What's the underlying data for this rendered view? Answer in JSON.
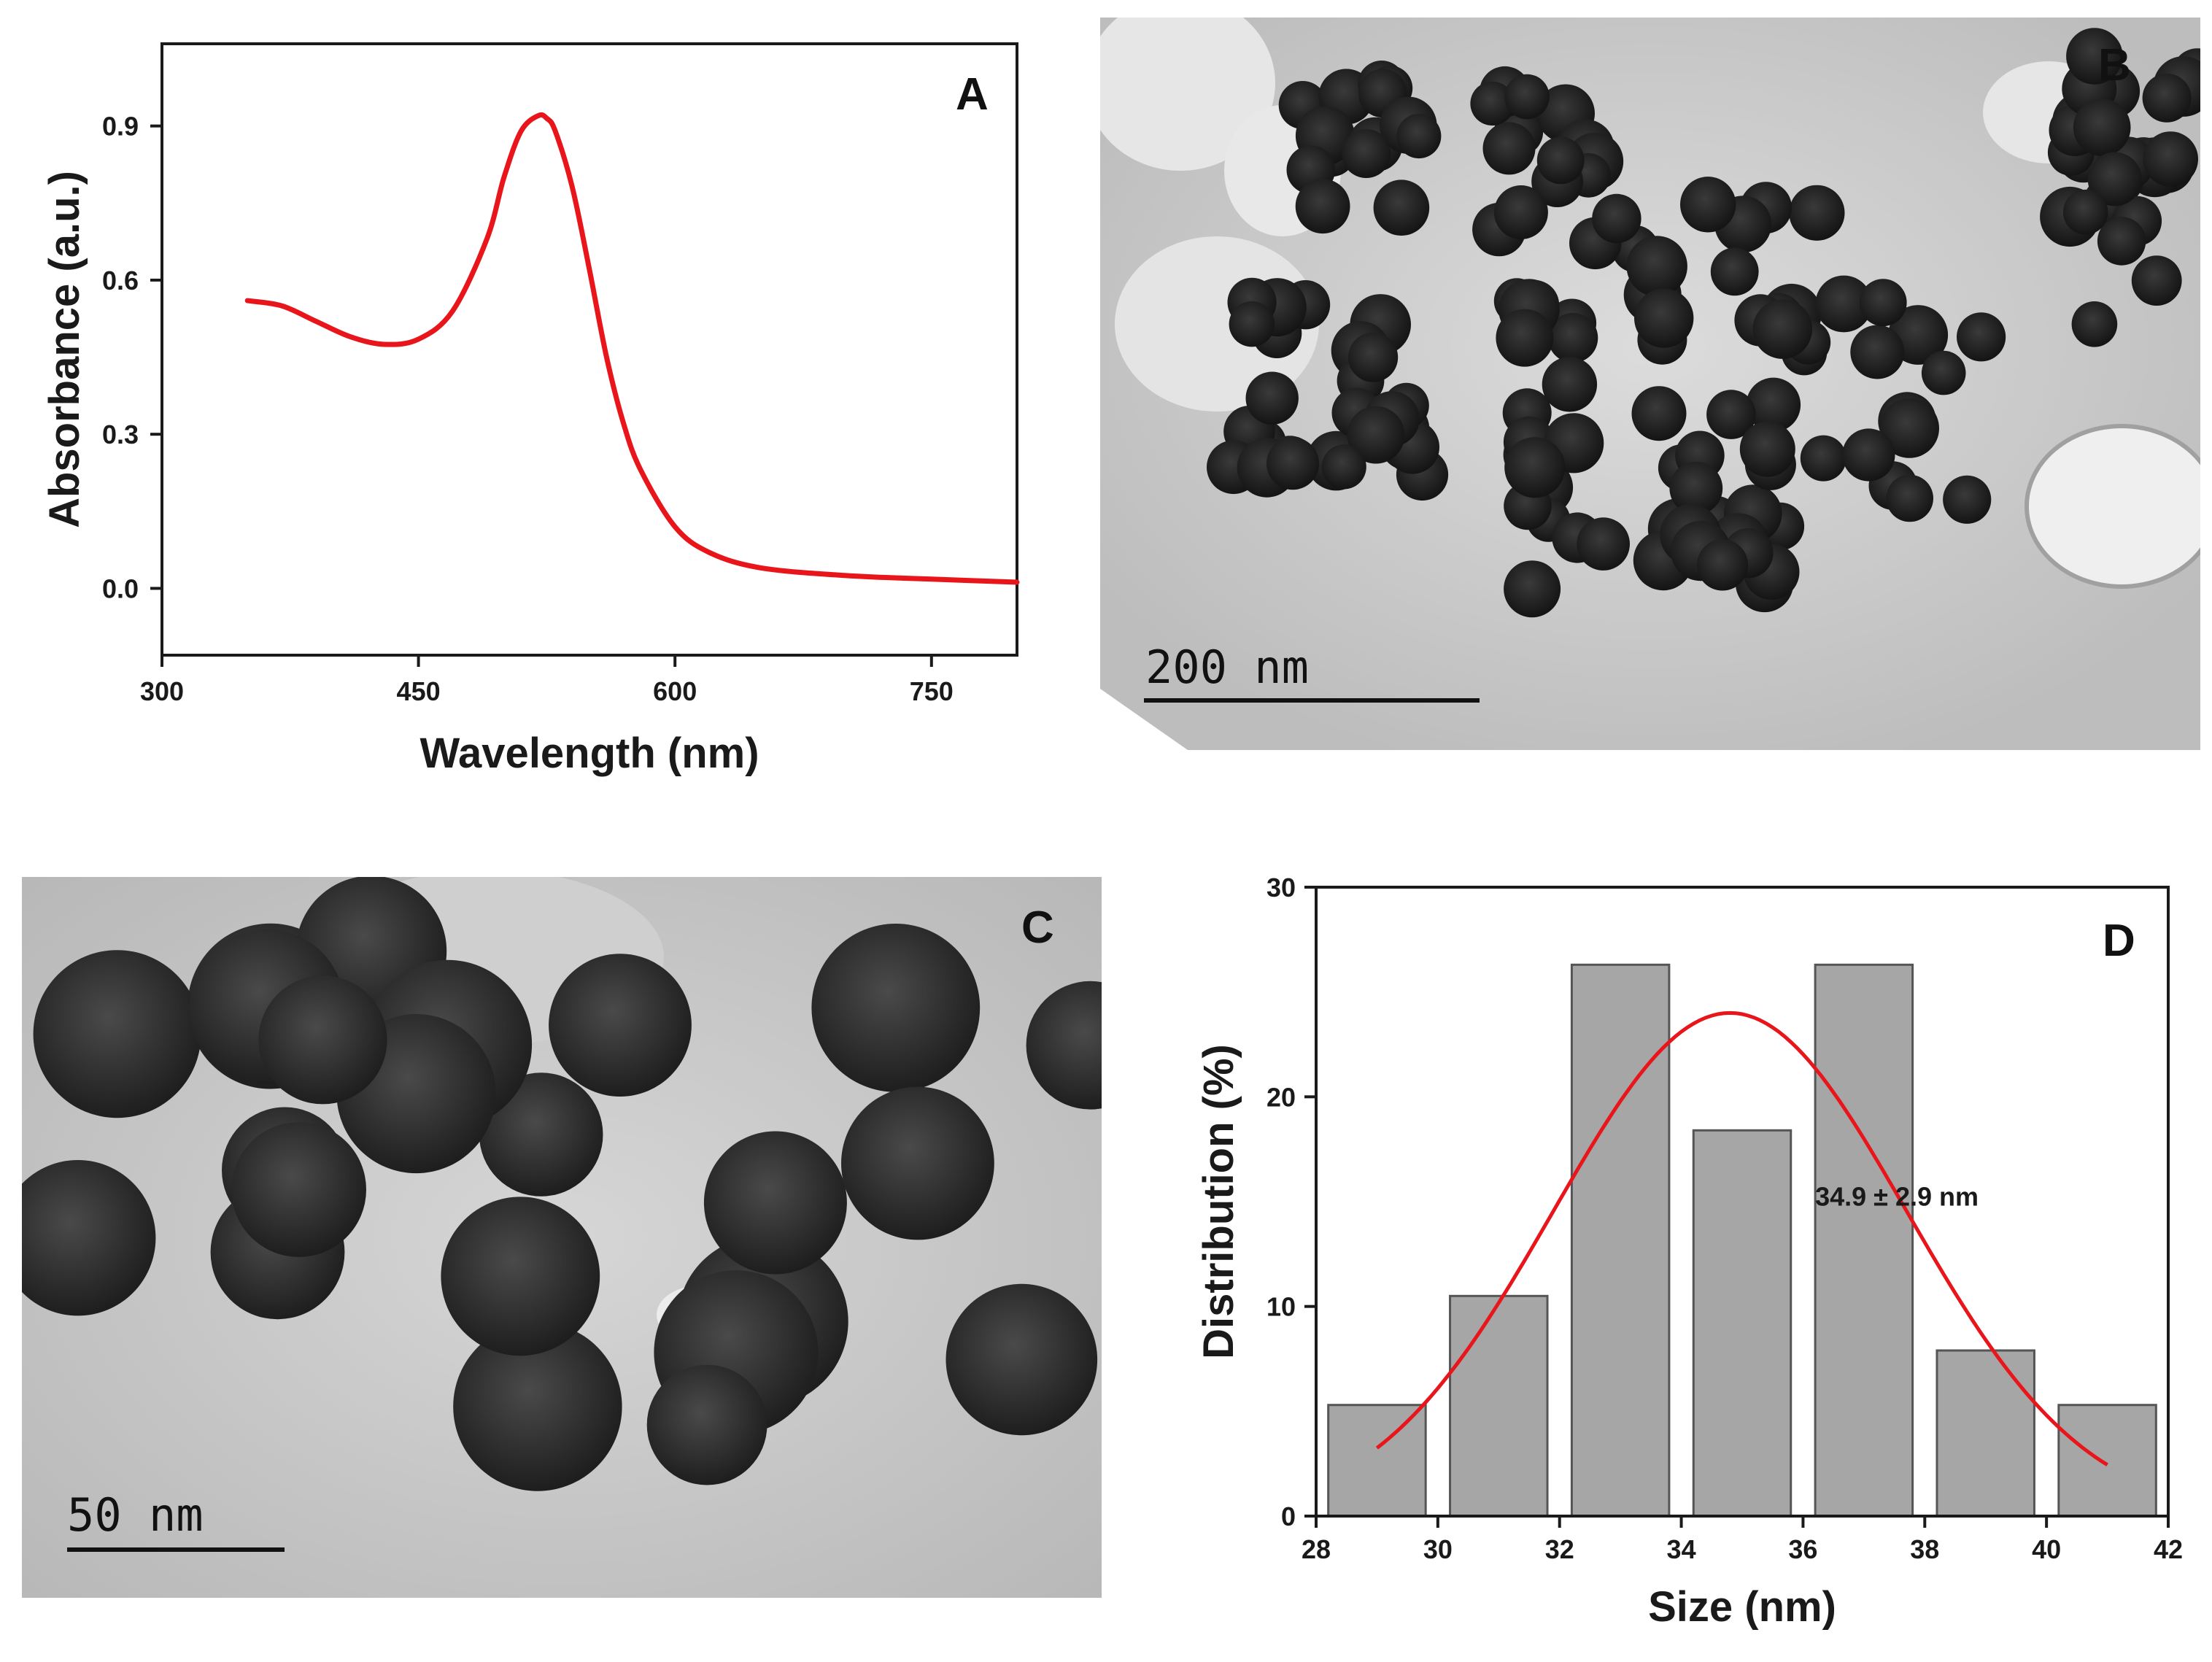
{
  "panels": {
    "A": "A",
    "B": "B",
    "C": "C",
    "D": "D"
  },
  "micrographs": {
    "B": {
      "scale_bar": "200 nm"
    },
    "C": {
      "scale_bar": "50 nm"
    }
  },
  "chart_data": [
    {
      "panel": "A",
      "type": "line",
      "title": "",
      "xlabel": "Wavelength (nm)",
      "ylabel": "Absorbance (a.u.)",
      "xlim": [
        300,
        800
      ],
      "ylim": [
        -0.13,
        1.06
      ],
      "xticks": [
        "300",
        "450",
        "600",
        "750"
      ],
      "yticks": [
        "0.0",
        "0.3",
        "0.6",
        "0.9"
      ],
      "grid": false,
      "color": "#e8151b",
      "series": [
        {
          "x": [
            350,
            370,
            390,
            410,
            430,
            450,
            470,
            490,
            500,
            510,
            520,
            525,
            530,
            540,
            550,
            560,
            570,
            580,
            600,
            620,
            650,
            700,
            750,
            800
          ],
          "values": [
            0.56,
            0.55,
            0.52,
            0.49,
            0.475,
            0.485,
            0.54,
            0.68,
            0.8,
            0.89,
            0.92,
            0.915,
            0.89,
            0.78,
            0.62,
            0.45,
            0.32,
            0.23,
            0.12,
            0.07,
            0.04,
            0.025,
            0.018,
            0.012
          ]
        }
      ]
    },
    {
      "panel": "D",
      "type": "bar",
      "title": "",
      "xlabel": "Size (nm)",
      "ylabel": "Distribution (%)",
      "xlim": [
        28,
        42
      ],
      "ylim": [
        0,
        30
      ],
      "xticks": [
        "28",
        "30",
        "32",
        "34",
        "36",
        "38",
        "40",
        "42"
      ],
      "yticks": [
        "0",
        "10",
        "20",
        "30"
      ],
      "grid": false,
      "bar_color": "#a6a6a6",
      "fit_color": "#e8151b",
      "annotation": "34.9 ± 2.9 nm",
      "bins": [
        {
          "center": 29,
          "value": 5.3
        },
        {
          "center": 31,
          "value": 10.5
        },
        {
          "center": 33,
          "value": 26.3
        },
        {
          "center": 35,
          "value": 18.4
        },
        {
          "center": 37,
          "value": 26.3
        },
        {
          "center": 39,
          "value": 7.9
        },
        {
          "center": 41,
          "value": 5.3
        }
      ],
      "bin_width": 1.6,
      "fit": {
        "type": "gaussian",
        "mean": 34.8,
        "sd": 2.9,
        "amplitude": 24.0,
        "x_range": [
          29,
          41
        ]
      }
    }
  ]
}
